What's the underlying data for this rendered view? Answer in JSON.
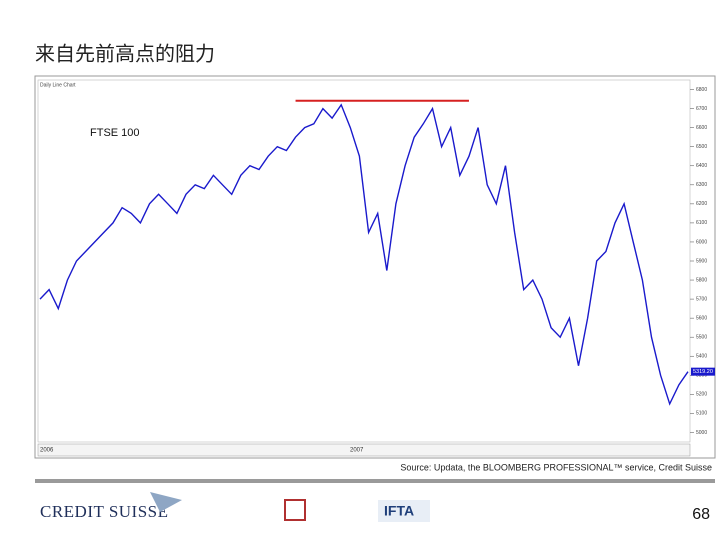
{
  "slide_title": "来自先前高点的阻力",
  "chart_data": {
    "type": "line",
    "header": "Daily Line Chart",
    "series_label": "FTSE 100",
    "values": [
      5700,
      5750,
      5650,
      5800,
      5900,
      5950,
      6000,
      6050,
      6100,
      6180,
      6150,
      6100,
      6200,
      6250,
      6200,
      6150,
      6250,
      6300,
      6280,
      6350,
      6300,
      6250,
      6350,
      6400,
      6380,
      6450,
      6500,
      6480,
      6550,
      6600,
      6620,
      6700,
      6650,
      6720,
      6600,
      6450,
      6050,
      6150,
      5850,
      6200,
      6400,
      6550,
      6620,
      6700,
      6500,
      6600,
      6350,
      6450,
      6600,
      6300,
      6200,
      6400,
      6050,
      5750,
      5800,
      5700,
      5550,
      5500,
      5600,
      5350,
      5600,
      5900,
      5950,
      6100,
      6200,
      6000,
      5800,
      5500,
      5300,
      5150,
      5250,
      5319.2
    ],
    "color": "#1a1acc",
    "ylim": [
      4950,
      6850
    ],
    "yticks": [
      5000,
      5100,
      5200,
      5300,
      5400,
      5500,
      5600,
      5700,
      5800,
      5900,
      6000,
      6100,
      6200,
      6300,
      6400,
      6500,
      6600,
      6700,
      6800
    ],
    "resistance_level": 6720,
    "resistance_color": "#d62020",
    "last_price": {
      "value": 5319.2,
      "label": "5319.20"
    },
    "year_labels": [
      "2006",
      "2007"
    ],
    "source": "Source: Updata, the BLOOMBERG PROFESSIONAL™ service, Credit Suisse"
  },
  "footer": {
    "company": "CREDIT SUISSE",
    "partner": "IFTA",
    "page_number": "68"
  }
}
